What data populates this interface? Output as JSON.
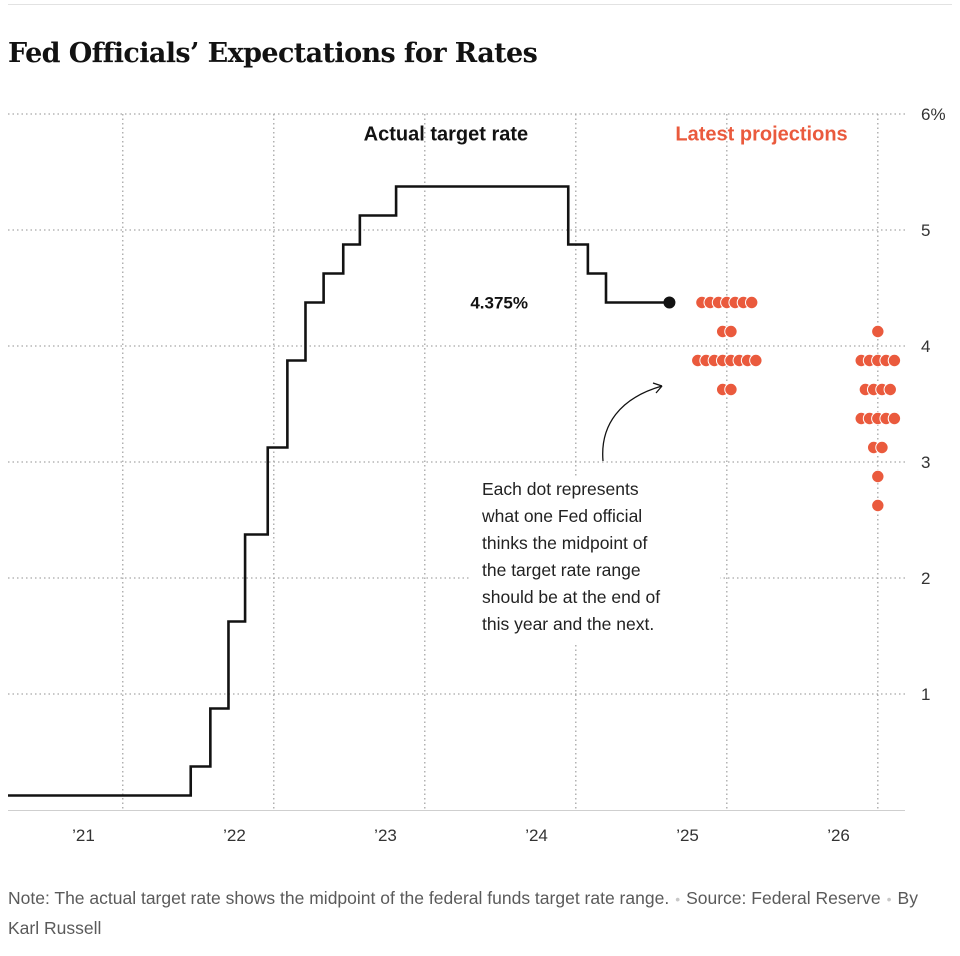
{
  "header": {
    "title": "Fed Officials’ Expectations for Rates"
  },
  "colors": {
    "line": "#121212",
    "dots": "#ea5a3d",
    "grid": "#a6a6a6",
    "text": "#333333"
  },
  "chart_data": {
    "type": "line",
    "title": "Fed Officials’ Expectations for Rates",
    "ylim": [
      0,
      6
    ],
    "yticks": [
      {
        "value": 1,
        "label": "1"
      },
      {
        "value": 2,
        "label": "2"
      },
      {
        "value": 3,
        "label": "3"
      },
      {
        "value": 4,
        "label": "4"
      },
      {
        "value": 5,
        "label": "5"
      },
      {
        "value": 6,
        "label": "6%"
      }
    ],
    "xlim": [
      2021.0,
      2026.94
    ],
    "xticks": [
      {
        "value": 2021.5,
        "label": "’21"
      },
      {
        "value": 2022.5,
        "label": "’22"
      },
      {
        "value": 2023.5,
        "label": "’23"
      },
      {
        "value": 2024.5,
        "label": "’24"
      },
      {
        "value": 2025.5,
        "label": "’25"
      },
      {
        "value": 2026.5,
        "label": "’26"
      }
    ],
    "year_boundaries": [
      2021.76,
      2022.76,
      2023.76,
      2024.76,
      2025.76,
      2026.76
    ],
    "series": [
      {
        "name": "Actual target rate",
        "step_points": [
          {
            "x": 2021.0,
            "y": 0.125
          },
          {
            "x": 2022.21,
            "y": 0.375
          },
          {
            "x": 2022.34,
            "y": 0.875
          },
          {
            "x": 2022.46,
            "y": 1.625
          },
          {
            "x": 2022.57,
            "y": 2.375
          },
          {
            "x": 2022.72,
            "y": 3.125
          },
          {
            "x": 2022.85,
            "y": 3.875
          },
          {
            "x": 2022.97,
            "y": 4.375
          },
          {
            "x": 2023.09,
            "y": 4.625
          },
          {
            "x": 2023.22,
            "y": 4.875
          },
          {
            "x": 2023.33,
            "y": 5.125
          },
          {
            "x": 2023.57,
            "y": 5.375
          },
          {
            "x": 2024.71,
            "y": 4.875
          },
          {
            "x": 2024.84,
            "y": 4.625
          },
          {
            "x": 2024.96,
            "y": 4.375
          },
          {
            "x": 2025.38,
            "y": 4.375
          }
        ],
        "end_label": "4.375%"
      }
    ],
    "projections": {
      "label": "Latest projections",
      "groups": [
        {
          "year": "2025",
          "x": 2025.76,
          "rows": [
            {
              "rate": 4.375,
              "count": 7
            },
            {
              "rate": 4.125,
              "count": 2
            },
            {
              "rate": 3.875,
              "count": 8
            },
            {
              "rate": 3.625,
              "count": 2
            }
          ]
        },
        {
          "year": "2026",
          "x": 2026.76,
          "rows": [
            {
              "rate": 4.125,
              "count": 1
            },
            {
              "rate": 3.875,
              "count": 5
            },
            {
              "rate": 3.625,
              "count": 4
            },
            {
              "rate": 3.375,
              "count": 5
            },
            {
              "rate": 3.125,
              "count": 2
            },
            {
              "rate": 2.875,
              "count": 1
            },
            {
              "rate": 2.625,
              "count": 1
            }
          ]
        }
      ]
    },
    "labels": {
      "actual": "Actual target rate",
      "projections": "Latest projections"
    },
    "annotation": [
      "Each dot represents",
      "what one Fed official",
      "thinks the midpoint of",
      "the target rate range",
      "should be at the end of",
      "this year and the next."
    ]
  },
  "footer": {
    "note": "Note: The actual target rate shows the midpoint of the federal funds target rate range.",
    "source": "Source: Federal Reserve",
    "byline": "By Karl Russell"
  }
}
